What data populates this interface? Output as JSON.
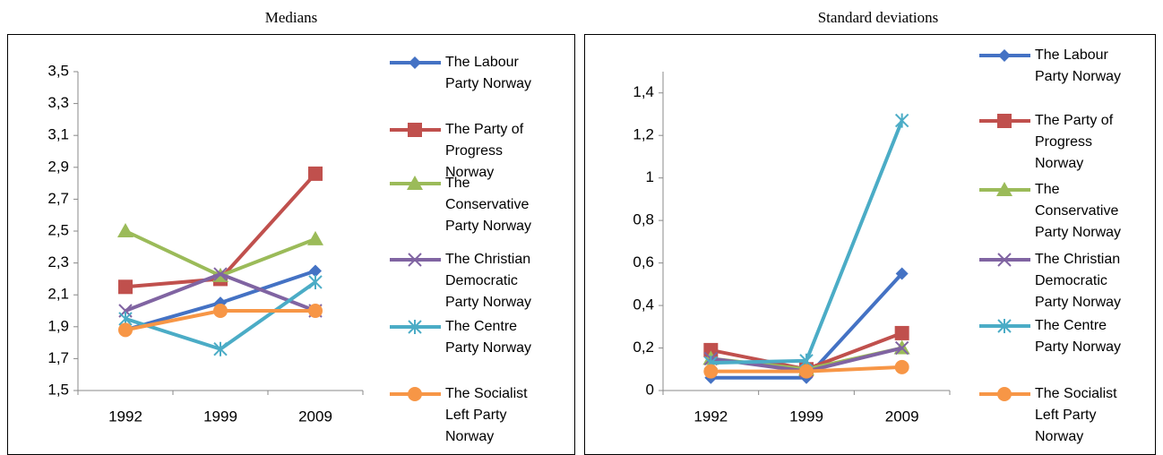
{
  "chart_data": [
    {
      "type": "line",
      "title": "Medians",
      "categories": [
        "1992",
        "1999",
        "2009"
      ],
      "ylim": [
        1.5,
        3.5
      ],
      "yticks": [
        {
          "value": 1.5,
          "label": "1,5"
        },
        {
          "value": 1.7,
          "label": "1,7"
        },
        {
          "value": 1.9,
          "label": "1,9"
        },
        {
          "value": 2.1,
          "label": "2,1"
        },
        {
          "value": 2.3,
          "label": "2,3"
        },
        {
          "value": 2.5,
          "label": "2,5"
        },
        {
          "value": 2.7,
          "label": "2,7"
        },
        {
          "value": 2.9,
          "label": "2,9"
        },
        {
          "value": 3.1,
          "label": "3,1"
        },
        {
          "value": 3.3,
          "label": "3,3"
        },
        {
          "value": 3.5,
          "label": "3,5"
        }
      ],
      "legend": "right",
      "series": [
        {
          "name": "The Labour Party Norway",
          "color": "#4472c4",
          "marker": "diamond",
          "values": [
            1.88,
            2.05,
            2.25
          ]
        },
        {
          "name": "The Party of Progress Norway",
          "color": "#c0504d",
          "marker": "square",
          "values": [
            2.15,
            2.2,
            2.86
          ]
        },
        {
          "name": "The Conservative Party Norway",
          "color": "#9bbb59",
          "marker": "triangle",
          "values": [
            2.5,
            2.22,
            2.45
          ]
        },
        {
          "name": "The Christian Democratic Party Norway",
          "color": "#8064a2",
          "marker": "x",
          "values": [
            2.0,
            2.23,
            2.0
          ]
        },
        {
          "name": "The Centre Party Norway",
          "color": "#4bacc6",
          "marker": "star",
          "values": [
            1.95,
            1.76,
            2.18
          ]
        },
        {
          "name": "The Socialist Left Party Norway",
          "color": "#f79646",
          "marker": "circle",
          "values": [
            1.88,
            2.0,
            2.0
          ]
        }
      ]
    },
    {
      "type": "line",
      "title": "Standard deviations",
      "categories": [
        "1992",
        "1999",
        "2009"
      ],
      "ylim": [
        0,
        1.5
      ],
      "yticks": [
        0,
        {
          "value": 0.2,
          "label": "0,2"
        },
        {
          "value": 0.4,
          "label": "0,4"
        },
        {
          "value": 0.6,
          "label": "0,6"
        },
        {
          "value": 0.8,
          "label": "0,8"
        },
        1,
        {
          "value": 1.2,
          "label": "1,2"
        },
        {
          "value": 1.4,
          "label": "1,4"
        }
      ],
      "legend": "right",
      "series": [
        {
          "name": "The Labour Party Norway",
          "color": "#4472c4",
          "marker": "diamond",
          "values": [
            0.06,
            0.06,
            0.55
          ]
        },
        {
          "name": "The Party of Progress Norway",
          "color": "#c0504d",
          "marker": "square",
          "values": [
            0.19,
            0.1,
            0.27
          ]
        },
        {
          "name": "The Conservative Party Norway",
          "color": "#9bbb59",
          "marker": "triangle",
          "values": [
            0.15,
            0.1,
            0.2
          ]
        },
        {
          "name": "The Christian Democratic Party Norway",
          "color": "#8064a2",
          "marker": "x",
          "values": [
            0.15,
            0.09,
            0.2
          ]
        },
        {
          "name": "The Centre Party Norway",
          "color": "#4bacc6",
          "marker": "star",
          "values": [
            0.13,
            0.14,
            1.27
          ]
        },
        {
          "name": "The Socialist Left Party Norway",
          "color": "#f79646",
          "marker": "circle",
          "values": [
            0.09,
            0.09,
            0.11
          ]
        }
      ]
    }
  ]
}
